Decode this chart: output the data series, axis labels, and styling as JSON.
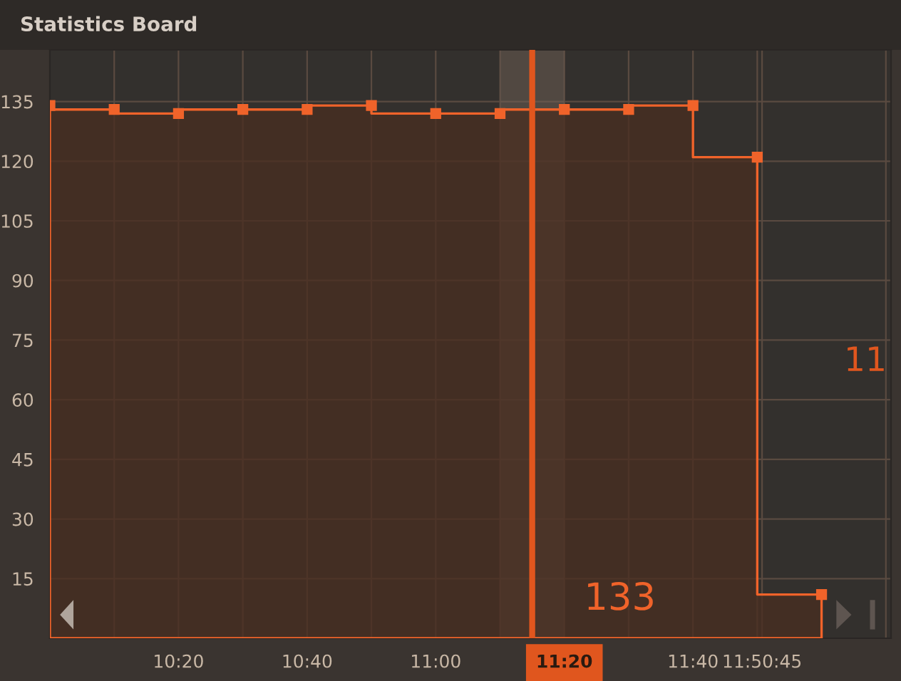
{
  "chart_data": {
    "type": "area",
    "title": "Statistics Board",
    "x": [
      10.0,
      10.1667,
      10.3333,
      10.5,
      10.6667,
      10.8333,
      11.0,
      11.1667,
      11.3333,
      11.5,
      11.6667,
      11.8333,
      12.0
    ],
    "series": [
      {
        "color": "#f0632a",
        "values": [
          134,
          133,
          132,
          133,
          133,
          134,
          132,
          132,
          133,
          133,
          134,
          121,
          11
        ]
      }
    ],
    "xlim": [
      10.0,
      12.18
    ],
    "xticks": [
      {
        "value": 10.1667,
        "label": null
      },
      {
        "value": 10.3333,
        "label": "10:20"
      },
      {
        "value": 10.5,
        "label": null
      },
      {
        "value": 10.6667,
        "label": "10:40"
      },
      {
        "value": 10.8333,
        "label": null
      },
      {
        "value": 11.0,
        "label": "11:00"
      },
      {
        "value": 11.1667,
        "label": null
      },
      {
        "value": 11.3333,
        "label": "11:20"
      },
      {
        "value": 11.5,
        "label": null
      },
      {
        "value": 11.6667,
        "label": "11:40"
      },
      {
        "value": 11.8333,
        "label": null
      },
      {
        "value": 11.8458,
        "label": "11:50:45"
      },
      {
        "value": 12.1667,
        "label": null
      }
    ],
    "ylim": [
      0,
      148
    ],
    "yticks": [
      15,
      30,
      45,
      60,
      75,
      90,
      105,
      120,
      135
    ],
    "grid": true,
    "marker": "square",
    "line_style": "solid",
    "ref_lines": [
      {
        "axis": "x",
        "value": 11.25,
        "color": "#e0561e"
      }
    ],
    "bands": [
      {
        "axis": "x",
        "from": 11.1667,
        "to": 11.3333,
        "color": "#75665c"
      }
    ],
    "annotations": [
      "133",
      "11"
    ]
  }
}
